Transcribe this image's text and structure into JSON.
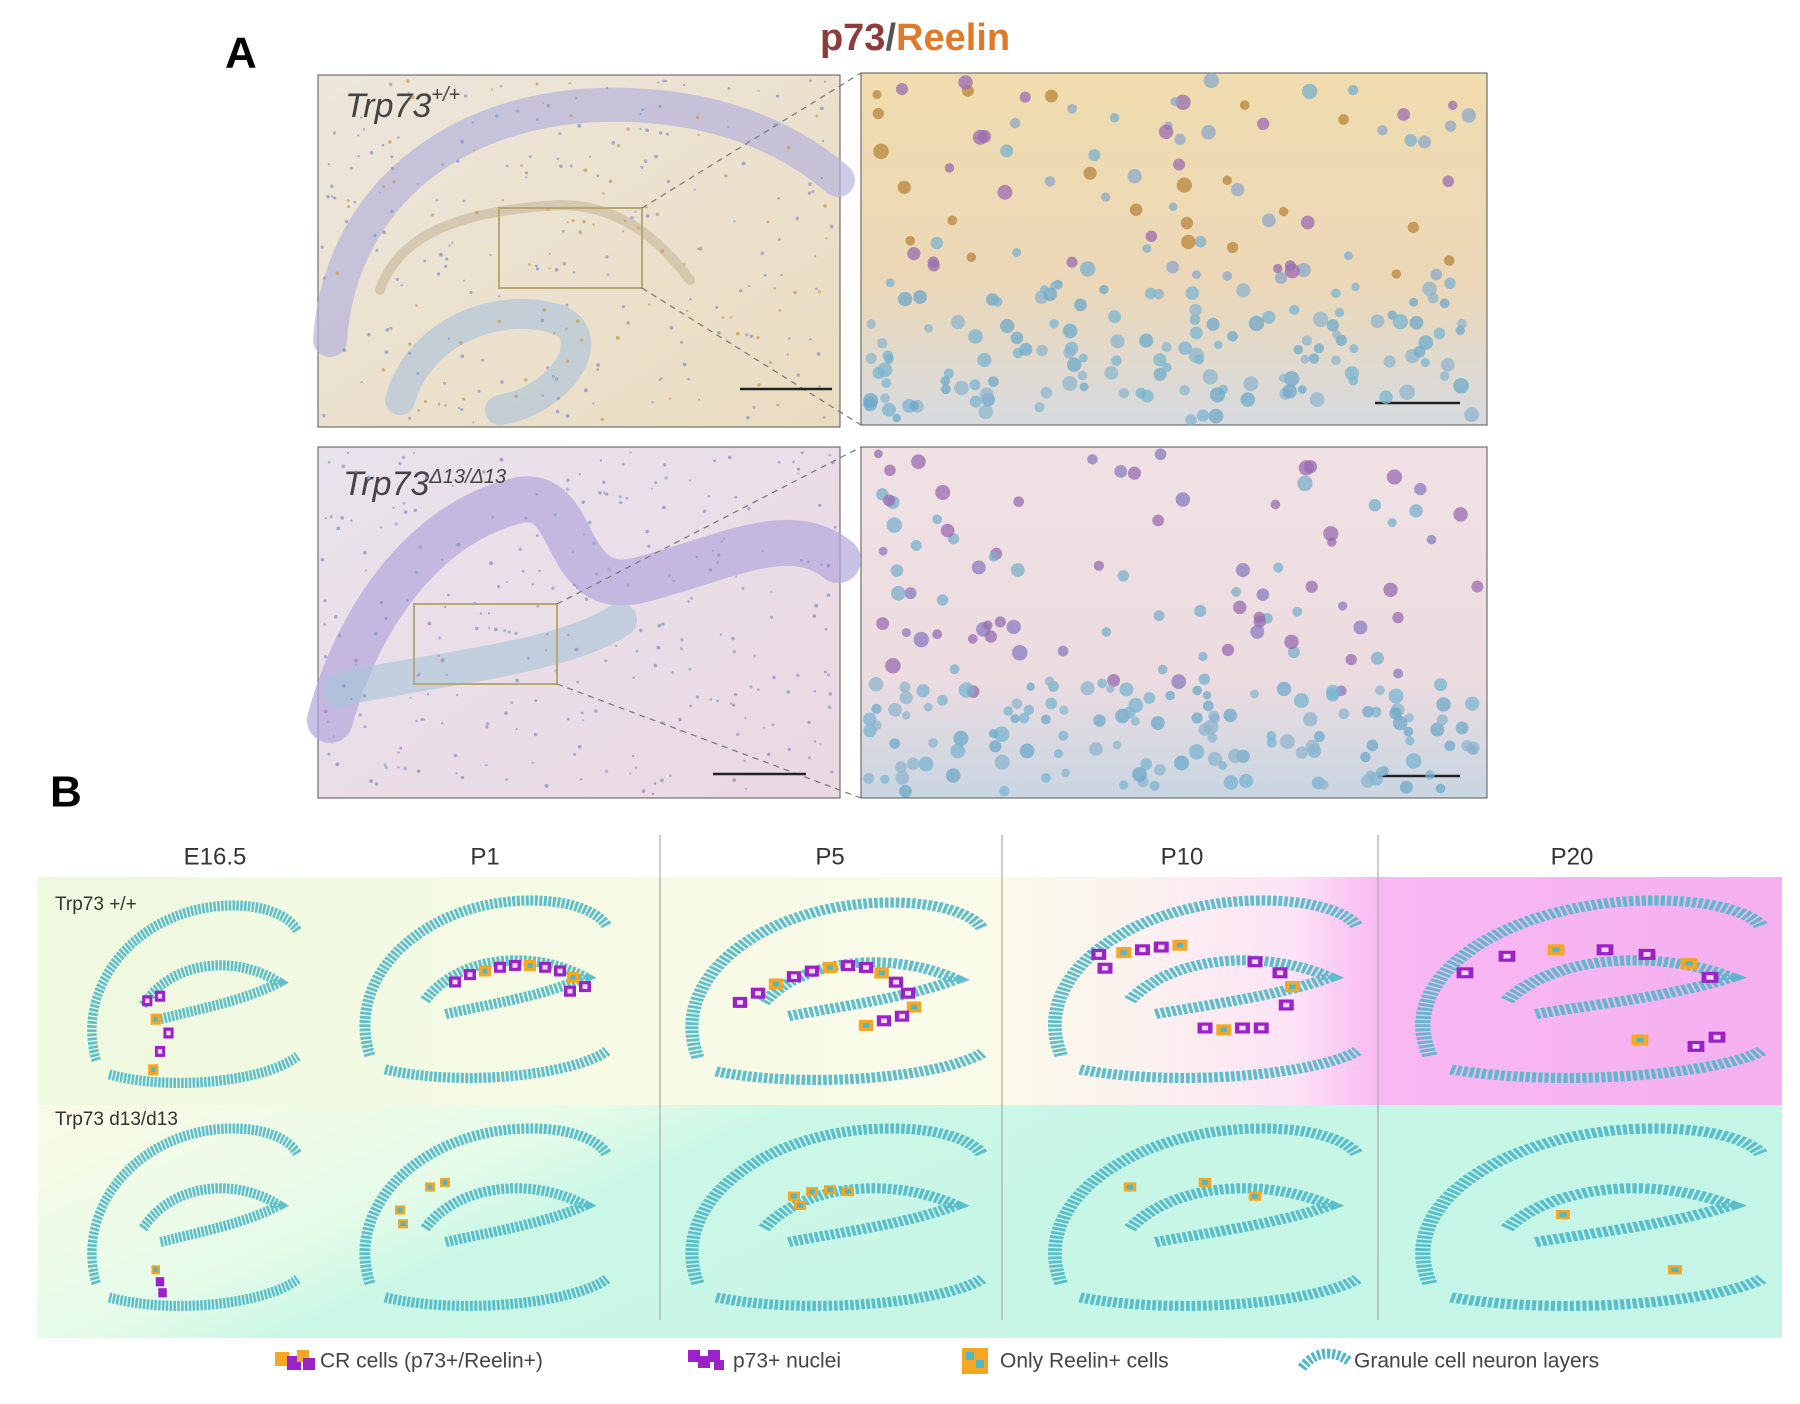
{
  "panel_a": {
    "label": "A",
    "title": {
      "p73": "p73",
      "slash": "/",
      "reelin": "Reelin"
    },
    "rows": [
      {
        "genotype": "Trp73",
        "superscript": "+/+"
      },
      {
        "genotype": "Trp73",
        "superscript": "Δ13/Δ13"
      }
    ]
  },
  "panel_b": {
    "label": "B",
    "stages": [
      "E16.5",
      "P1",
      "P5",
      "P10",
      "P20"
    ],
    "rows": [
      "Trp73 +/+",
      "Trp73 d13/d13"
    ],
    "legend": [
      "CR cells (p73+/Reelin+)",
      "p73+ nuclei",
      "Only Reelin+ cells",
      "Granule cell neuron layers"
    ]
  }
}
